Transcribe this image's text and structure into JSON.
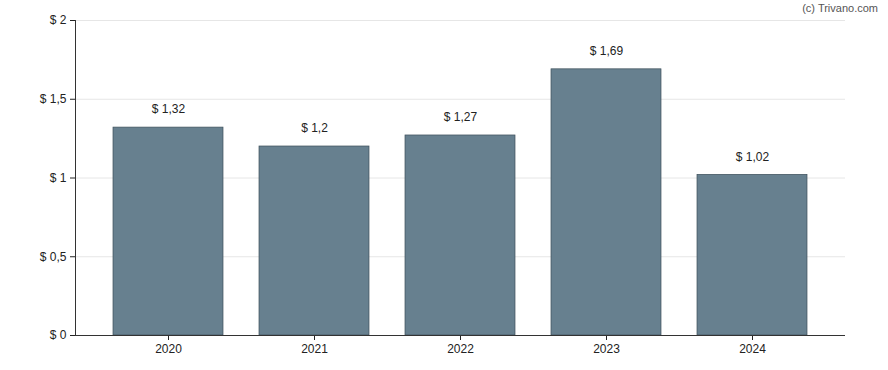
{
  "chart_data": {
    "type": "bar",
    "annotations": [
      "(c) Trivano.com"
    ],
    "categories": [
      "2020",
      "2021",
      "2022",
      "2023",
      "2024"
    ],
    "values": [
      1.32,
      1.2,
      1.27,
      1.69,
      1.02
    ],
    "value_labels": [
      "$ 1,32",
      "$ 1,2",
      "$ 1,27",
      "$ 1,69",
      "$ 1,02"
    ],
    "data_labels": true,
    "color": "#67808f",
    "ylim": [
      0,
      2
    ],
    "yticks": [
      {
        "value": 0,
        "label": "$ 0"
      },
      {
        "value": 0.5,
        "label": "$ 0,5"
      },
      {
        "value": 1,
        "label": "$ 1"
      },
      {
        "value": 1.5,
        "label": "$ 1,5"
      },
      {
        "value": 2,
        "label": "$ 2"
      }
    ],
    "grid": true
  }
}
